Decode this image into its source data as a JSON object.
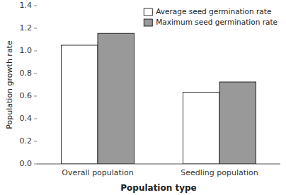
{
  "chart_data": {
    "type": "bar",
    "xlabel": "Population type",
    "ylabel": "Population growth rate",
    "categories": [
      "Overall population",
      "Seedling population"
    ],
    "series": [
      {
        "name": "Average seed germination rate",
        "color": "#ffffff",
        "values": [
          1.05,
          0.635
        ]
      },
      {
        "name": "Maximum seed germination rate",
        "color": "#999999",
        "values": [
          1.155,
          0.725
        ]
      }
    ],
    "ylim": [
      0,
      1.4
    ],
    "yticks": [
      {
        "value": 0,
        "label": "0.0"
      },
      0.2,
      0.4,
      0.6,
      0.8,
      {
        "value": 1.0,
        "label": "1.0"
      },
      1.2,
      1.4
    ],
    "grid": false,
    "legend": "upper right"
  }
}
